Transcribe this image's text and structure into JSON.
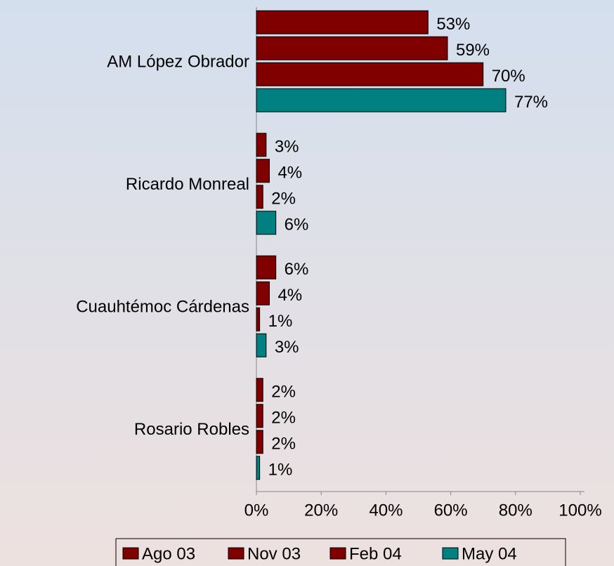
{
  "chart_data": {
    "type": "hbar",
    "categories": [
      "AM López Obrador",
      "Ricardo Monreal",
      "Cuauhtémoc Cárdenas",
      "Rosario Robles"
    ],
    "series": [
      {
        "name": "Ago 03",
        "color": "#800000",
        "values": [
          53,
          3,
          6,
          2
        ],
        "value_labels": [
          "53%",
          "3%",
          "6%",
          "2%"
        ]
      },
      {
        "name": "Nov 03",
        "color": "#800000",
        "values": [
          59,
          4,
          4,
          2
        ],
        "value_labels": [
          "59%",
          "4%",
          "4%",
          "2%"
        ]
      },
      {
        "name": "Feb 04",
        "color": "#800000",
        "values": [
          70,
          2,
          1,
          2
        ],
        "value_labels": [
          "70%",
          "2%",
          "1%",
          "2%"
        ]
      },
      {
        "name": "May 04",
        "color": "#008080",
        "values": [
          77,
          6,
          3,
          1
        ],
        "value_labels": [
          "77%",
          "6%",
          "3%",
          "1%"
        ]
      }
    ],
    "xlim": [
      0,
      100
    ],
    "xticks": [
      {
        "value": 0,
        "label": "0%"
      },
      {
        "value": 20,
        "label": "20%"
      },
      {
        "value": 40,
        "label": "40%"
      },
      {
        "value": 60,
        "label": "60%"
      },
      {
        "value": 80,
        "label": "80%"
      },
      {
        "value": 100,
        "label": "100%"
      }
    ],
    "legend": "bottom"
  }
}
